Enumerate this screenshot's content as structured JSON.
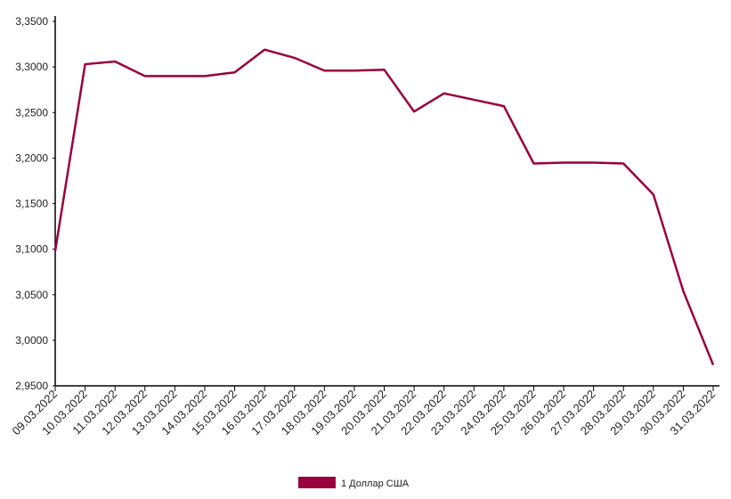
{
  "chart_data": {
    "type": "line",
    "categories": [
      "09.03.2022",
      "10.03.2022",
      "11.03.2022",
      "12.03.2022",
      "13.03.2022",
      "14.03.2022",
      "15.03.2022",
      "16.03.2022",
      "17.03.2022",
      "18.03.2022",
      "19.03.2022",
      "20.03.2022",
      "21.03.2022",
      "22.03.2022",
      "23.03.2022",
      "24.03.2022",
      "25.03.2022",
      "26.03.2022",
      "27.03.2022",
      "28.03.2022",
      "29.03.2022",
      "30.03.2022",
      "31.03.2022"
    ],
    "series": [
      {
        "name": "1 Доллар США",
        "color": "#99003d",
        "values": [
          3.098,
          3.303,
          3.306,
          3.29,
          3.29,
          3.29,
          3.294,
          3.319,
          3.31,
          3.296,
          3.296,
          3.297,
          3.251,
          3.271,
          3.264,
          3.257,
          3.194,
          3.195,
          3.195,
          3.194,
          3.16,
          3.054,
          2.973
        ]
      }
    ],
    "ylim": [
      2.95,
      3.35
    ],
    "yticks": [
      {
        "value": 2.95,
        "label": "2,9500"
      },
      {
        "value": 3.0,
        "label": "3,0000"
      },
      {
        "value": 3.05,
        "label": "3,0500"
      },
      {
        "value": 3.1,
        "label": "3,1000"
      },
      {
        "value": 3.15,
        "label": "3,1500"
      },
      {
        "value": 3.2,
        "label": "3,2000"
      },
      {
        "value": 3.25,
        "label": "3,2500"
      },
      {
        "value": 3.3,
        "label": "3,3000"
      },
      {
        "value": 3.35,
        "label": "3,3500"
      }
    ],
    "grid": false
  }
}
